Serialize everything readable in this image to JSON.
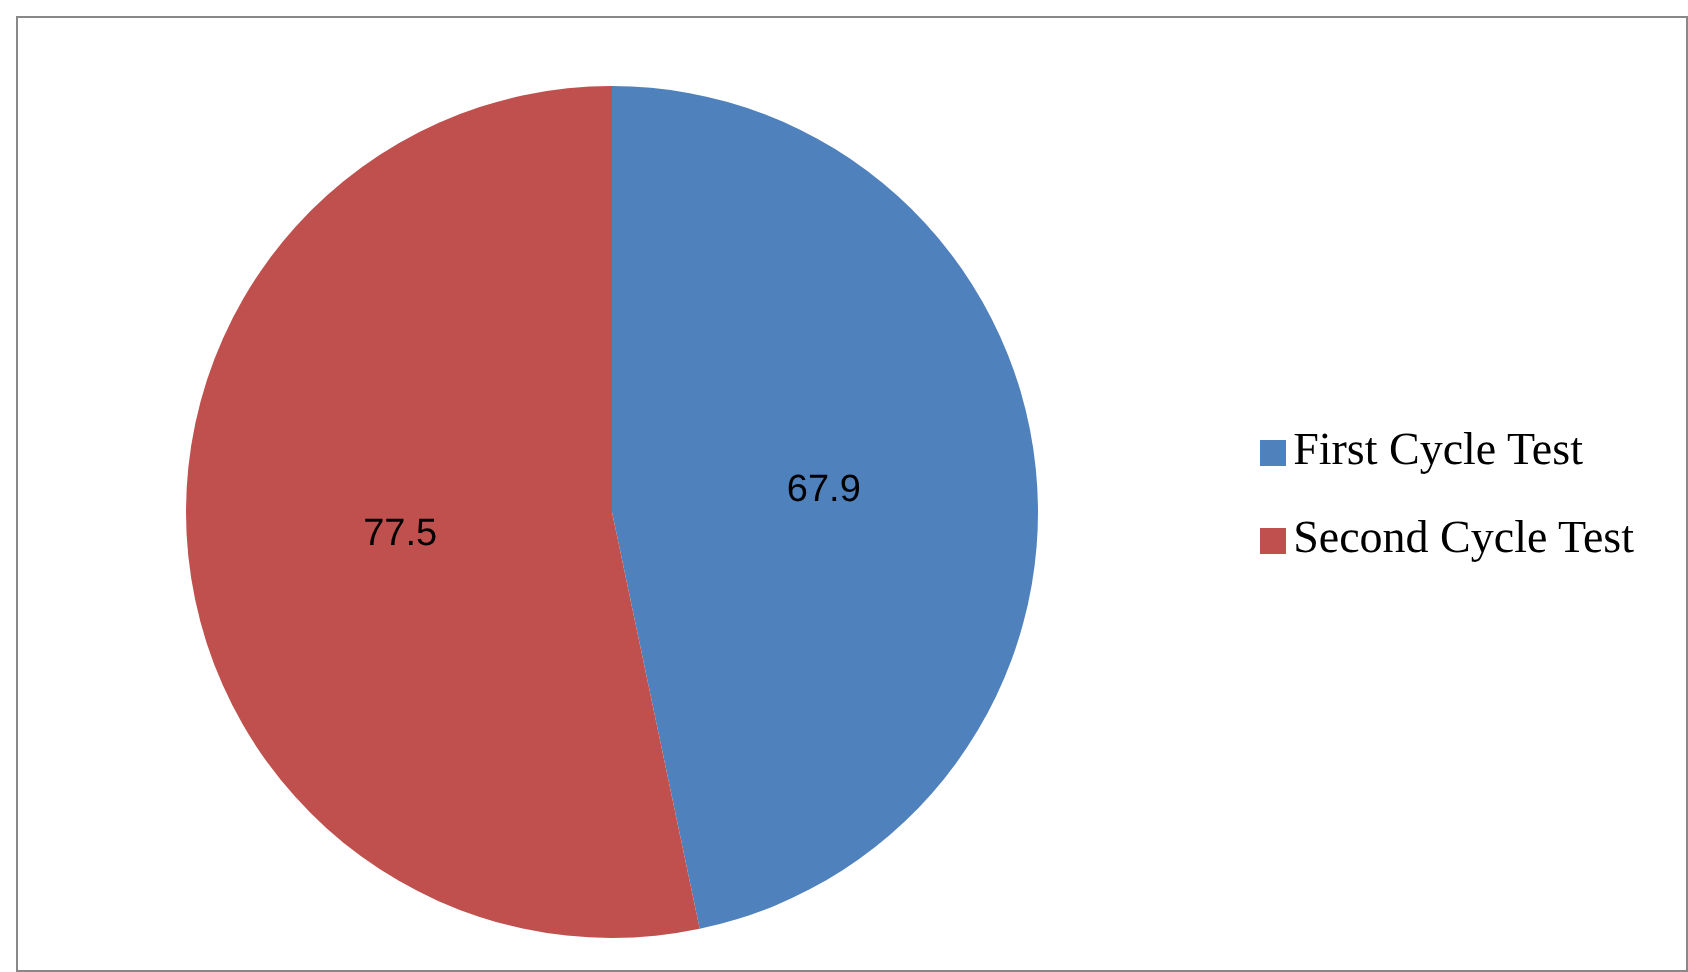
{
  "chart_data": {
    "type": "pie",
    "categories": [
      "First Cycle Test",
      "Second Cycle Test"
    ],
    "values": [
      67.9,
      77.5
    ],
    "colors": [
      "#4f81bd",
      "#c0504d"
    ],
    "data_labels": true,
    "legend": "right"
  }
}
